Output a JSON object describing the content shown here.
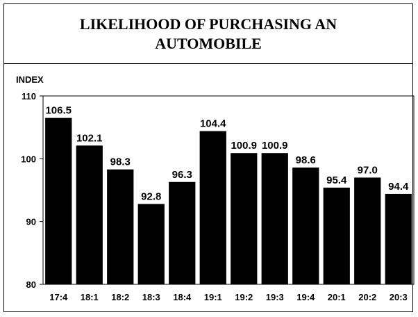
{
  "chart_data": {
    "type": "bar",
    "title": "LIKELIHOOD OF PURCHASING AN AUTOMOBILE",
    "ylabel": "INDEX",
    "xlabel": "",
    "ylim": [
      80,
      110
    ],
    "yticks": [
      80,
      90,
      100,
      110
    ],
    "categories": [
      "17:4",
      "18:1",
      "18:2",
      "18:3",
      "18:4",
      "19:1",
      "19:2",
      "19:3",
      "19:4",
      "20:1",
      "20:2",
      "20:3"
    ],
    "values": [
      106.5,
      102.1,
      98.3,
      92.8,
      96.3,
      104.4,
      100.9,
      100.9,
      98.6,
      95.4,
      97.0,
      94.4
    ],
    "value_labels": [
      "106.5",
      "102.1",
      "98.3",
      "92.8",
      "96.3",
      "104.4",
      "100.9",
      "100.9",
      "98.6",
      "95.4",
      "97.0",
      "94.4"
    ],
    "bar_color": "#000000",
    "grid": false,
    "legend": "none"
  }
}
